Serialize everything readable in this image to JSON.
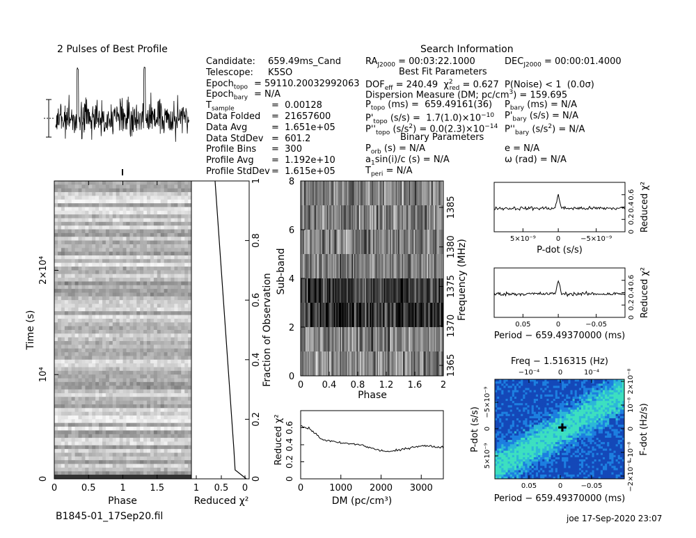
{
  "profile_title": "2 Pulses of Best Profile",
  "info_header": "Search Information",
  "left_info": [
    {
      "k": "Candidate:",
      "v": "659.49ms_Cand"
    },
    {
      "k": "Telescope:",
      "v": "K5SO"
    },
    {
      "k": "Epoch",
      "sub": "topo",
      "v": "= 59110.20032992063"
    },
    {
      "k": "Epoch",
      "sub": "bary",
      "v": "= N/A"
    },
    {
      "k": "T",
      "sub": "sample",
      "v": "=  0.00128"
    },
    {
      "k": "Data Folded",
      "v": "=  21657600"
    },
    {
      "k": "Data Avg",
      "v": "=  1.651e+05"
    },
    {
      "k": "Data StdDev",
      "v": "=  601.2"
    },
    {
      "k": "Profile Bins",
      "v": "=  300"
    },
    {
      "k": "Profile Avg",
      "v": "=  1.192e+10"
    },
    {
      "k": "Profile StdDev",
      "v": "=  1.615e+05"
    }
  ],
  "mid_info": {
    "ra": "RA_J2000 = 00:03:22.1000",
    "dec": "DEC_J2000 = 00:00:01.4000",
    "best_fit": "Best Fit Parameters",
    "dof": "DOF_eff = 240.49  χ²_red = 0.627  P(Noise) < 1  (0.0σ)",
    "dm": "Dispersion Measure (DM; pc/cm³) = 159.695",
    "ptopo": "P_topo (ms) =  659.49161(36)",
    "pdtopo": "P'_topo (s/s) =  1.7(1.0)×10⁻¹⁰",
    "pddtopo": "P''_topo (s/s²) = 0.0(2.3)×10⁻¹⁴",
    "pbary": "P_bary (ms) = N/A",
    "pdbary": "P'_bary (s/s) = N/A",
    "pddbary": "P''_bary (s/s²) = N/A",
    "binary": "Binary Parameters",
    "porb": "P_orb (s) = N/A",
    "asini": "a₁sin(i)/c (s) = N/A",
    "tperi": "T_peri = N/A",
    "ecc": "e = N/A",
    "omega": "ω (rad) = N/A"
  },
  "time_phase": {
    "ylabel": "Time (s)",
    "xlabel": "Phase",
    "xticks": [
      "0",
      "0.5",
      "1",
      "1.5"
    ],
    "yticks": [
      "0",
      "10⁴",
      "2×10⁴"
    ]
  },
  "chi_time": {
    "xlabel": "Reduced χ²",
    "xticks": [
      "1",
      "0.5",
      "0"
    ],
    "ylabel": "Fraction of Observation",
    "yticks": [
      "0",
      "0.2",
      "0.4",
      "0.6",
      "0.8",
      "1"
    ]
  },
  "subband": {
    "ylabel": "Sub-band",
    "xlabel": "Phase",
    "xticks": [
      "0",
      "0.4",
      "0.8",
      "1.2",
      "1.6",
      "2"
    ],
    "yticks": [
      "0",
      "2",
      "4",
      "6",
      "8"
    ],
    "y2label": "Frequency (MHz)",
    "y2ticks": [
      "1365",
      "1370",
      "1375",
      "1380",
      "1385"
    ]
  },
  "pdot_panel": {
    "xlabel": "P-dot (s/s)",
    "ylabel": "Reduced χ²",
    "xticks": [
      "5×10⁻⁹",
      "0",
      "−5×10⁻⁹"
    ],
    "yticks": [
      "0",
      "0.2",
      "0.4",
      "0.6"
    ]
  },
  "period_panel": {
    "xlabel": "Period − 659.49370000 (ms)",
    "ylabel": "Reduced χ²",
    "xticks": [
      "0.05",
      "0",
      "−0.05"
    ],
    "yticks": [
      "0",
      "0.2",
      "0.4",
      "0.6"
    ]
  },
  "dm_panel": {
    "xlabel": "DM (pc/cm³)",
    "ylabel": "Reduced χ²",
    "xticks": [
      "0",
      "1000",
      "2000",
      "3000"
    ],
    "yticks": [
      "0",
      "0.2",
      "0.4",
      "0.6"
    ]
  },
  "ppdot": {
    "top_label": "Freq − 1.516315 (Hz)",
    "top_ticks": [
      "−10⁻⁴",
      "0",
      "10⁻⁴"
    ],
    "xlabel": "Period − 659.49370000 (ms)",
    "xticks": [
      "0.05",
      "0",
      "−0.05"
    ],
    "ylabel": "P-dot (s/s)",
    "yticks": [
      "−5×10⁻⁹",
      "0",
      "5×10⁻⁹"
    ],
    "y2label": "F-dot (Hz/s)",
    "y2ticks": [
      "2×10⁻⁸",
      "10⁻⁸",
      "0",
      "−10⁻⁸",
      "−2×10⁻⁸"
    ]
  },
  "filename": "B1845-01_17Sep20.fil",
  "footer": "joe 17-Sep-2020 23:07",
  "chart_data": [
    {
      "type": "line",
      "title": "2 Pulses of Best Profile",
      "xlabel": "",
      "ylabel": "",
      "x": [
        0,
        0.2,
        0.4,
        0.6,
        0.8,
        1.0,
        1.2,
        1.4,
        1.6,
        1.8,
        2.0
      ],
      "y": [
        0.45,
        0.5,
        0.95,
        0.5,
        0.45,
        0.5,
        0.45,
        0.5,
        0.95,
        0.5,
        0.45
      ]
    },
    {
      "type": "line",
      "xlabel": "DM (pc/cm³)",
      "ylabel": "Reduced χ²",
      "xlim": [
        0,
        3550
      ],
      "ylim": [
        0,
        0.8
      ],
      "x": [
        0,
        250,
        500,
        750,
        1000,
        1250,
        1500,
        1750,
        2000,
        2250,
        2500,
        2750,
        3000,
        3250,
        3500
      ],
      "y": [
        0.62,
        0.58,
        0.47,
        0.44,
        0.42,
        0.41,
        0.4,
        0.36,
        0.33,
        0.32,
        0.34,
        0.37,
        0.39,
        0.38,
        0.37
      ]
    },
    {
      "type": "line",
      "xlabel": "P-dot (s/s)",
      "ylabel": "Reduced χ²",
      "ylim": [
        0,
        0.8
      ],
      "x": [
        -9e-09,
        -6e-09,
        -3e-09,
        0,
        3e-09,
        6e-09,
        9e-09
      ],
      "y": [
        0.37,
        0.38,
        0.39,
        0.62,
        0.4,
        0.38,
        0.37
      ]
    },
    {
      "type": "line",
      "xlabel": "Period − 659.49370000 (ms)",
      "ylabel": "Reduced χ²",
      "ylim": [
        0,
        0.8
      ],
      "x": [
        0.065,
        0.04,
        0.02,
        0,
        -0.02,
        -0.04,
        -0.065
      ],
      "y": [
        0.37,
        0.38,
        0.39,
        0.62,
        0.4,
        0.38,
        0.37
      ]
    },
    {
      "type": "line",
      "xlabel": "Reduced χ²",
      "ylabel": "Fraction of Observation",
      "xlim": [
        1,
        0
      ],
      "ylim": [
        0,
        1
      ],
      "x": [
        0.0,
        0.18,
        0.2,
        0.25,
        0.3,
        0.35,
        0.4,
        0.45,
        0.5
      ],
      "y": [
        0.0,
        0.03,
        0.1,
        0.25,
        0.4,
        0.55,
        0.7,
        0.85,
        1.0
      ]
    }
  ]
}
